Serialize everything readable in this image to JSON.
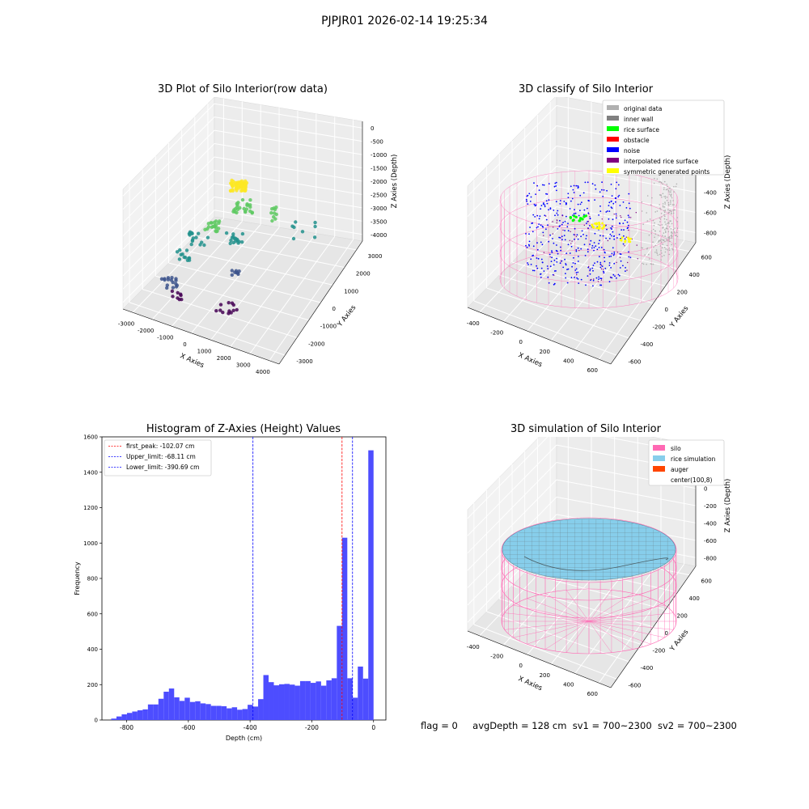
{
  "figure_title": "PJPJR01 2026-02-14 19:25:34",
  "footer": {
    "flag": "flag = 0",
    "avg_depth": "avgDepth = 128 cm",
    "sv1": "sv1 = 700~2300",
    "sv2": "sv2 = 700~2300"
  },
  "colors": {
    "original": "#b0b0b0",
    "inner_wall": "#808080",
    "rice_surface": "#00ff00",
    "obstacle": "#ff0000",
    "noise": "#0000ff",
    "interpolated": "#800080",
    "symmetric": "#ffff00",
    "silo": "#ff69b4",
    "rice_sim": "#87ceeb",
    "auger": "#ff4500",
    "hist_bar": "#4d4dff"
  },
  "chart_data": [
    {
      "type": "scatter",
      "title": "3D Plot of Silo Interior(row data)",
      "xlabel": "X Axies",
      "ylabel": "Y Axies",
      "zlabel": "Z Axies (Depth)",
      "x_ticks": [
        "-3000",
        "-2000",
        "-1000",
        "0",
        "1000",
        "2000",
        "3000",
        "4000"
      ],
      "y_ticks": [
        "-3000",
        "-2000",
        "-1000",
        "0",
        "1000",
        "2000",
        "3000"
      ],
      "z_ticks": [
        "0",
        "-500",
        "-1000",
        "-1500",
        "-2000",
        "-2500",
        "-3000",
        "-3500",
        "-4000"
      ],
      "colormap": "viridis"
    },
    {
      "type": "scatter",
      "title": "3D classify of Silo Interior",
      "xlabel": "X Axies",
      "ylabel": "Y Axies",
      "zlabel": "Z Axies (Depth)",
      "x_ticks": [
        "-400",
        "-200",
        "0",
        "200",
        "400",
        "600"
      ],
      "y_ticks": [
        "-600",
        "-400",
        "-200",
        "0",
        "200",
        "400",
        "600"
      ],
      "z_ticks": [
        "200",
        "0",
        "-200",
        "-400",
        "-600",
        "-800"
      ],
      "legend": [
        "original data",
        "inner wall",
        "rice surface",
        "obstacle",
        "noise",
        "interpolated rice surface",
        "symmetric generated points"
      ],
      "legend_position": "top-right"
    },
    {
      "type": "bar",
      "title": "Histogram of Z-Axies (Height) Values",
      "xlabel": "Depth (cm)",
      "ylabel": "Frequency",
      "xlim": [
        -880,
        40
      ],
      "ylim": [
        0,
        1600
      ],
      "x_ticks": [
        -800,
        -600,
        -400,
        -200,
        0
      ],
      "y_ticks": [
        0,
        200,
        400,
        600,
        800,
        1000,
        1200,
        1400,
        1600
      ],
      "bin_start": -850,
      "bin_width": 17,
      "values": [
        8,
        20,
        32,
        40,
        48,
        55,
        60,
        88,
        88,
        120,
        160,
        178,
        128,
        108,
        126,
        102,
        106,
        94,
        90,
        80,
        80,
        78,
        66,
        72,
        58,
        62,
        86,
        76,
        118,
        254,
        214,
        196,
        202,
        204,
        200,
        194,
        220,
        220,
        210,
        218,
        194,
        224,
        236,
        532,
        1030,
        236,
        126,
        302,
        234,
        1524
      ],
      "reference_lines": [
        {
          "label": "first_peak: -102.07 cm",
          "value": -102.07,
          "color": "#ff0000"
        },
        {
          "label": "Upper_limit: -68.11 cm",
          "value": -68.11,
          "color": "#0000ff"
        },
        {
          "label": "Lower_limit: -390.69 cm",
          "value": -390.69,
          "color": "#0000ff"
        }
      ],
      "legend_position": "top-left"
    },
    {
      "type": "area",
      "title": "3D simulation of Silo Interior",
      "xlabel": "X Axies",
      "ylabel": "Y Axies",
      "zlabel": "Z Axies (Depth)",
      "x_ticks": [
        "-400",
        "-200",
        "0",
        "200",
        "400",
        "600"
      ],
      "y_ticks": [
        "-600",
        "-400",
        "-200",
        "0",
        "200",
        "400",
        "600"
      ],
      "z_ticks": [
        "400",
        "200",
        "0",
        "-200",
        "-400",
        "-600",
        "-800"
      ],
      "legend": [
        "silo",
        "rice simulation",
        "auger",
        "center(100,8)"
      ],
      "legend_position": "top-right"
    }
  ]
}
